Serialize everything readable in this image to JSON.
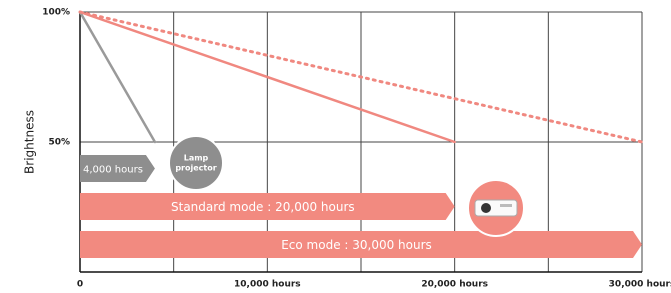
{
  "chart_data": {
    "type": "line",
    "y_label": "Brightness",
    "xlim": [
      0,
      30000
    ],
    "ylim": [
      0,
      100
    ],
    "xticks": [
      0,
      {
        "value": 5000,
        "label": null
      },
      {
        "value": 10000,
        "label": "10,000 hours"
      },
      {
        "value": 15000,
        "label": null
      },
      {
        "value": 20000,
        "label": "20,000 hours"
      },
      {
        "value": 25000,
        "label": null
      },
      {
        "value": 30000,
        "label": "30,000 hours"
      }
    ],
    "yticks": [
      {
        "value": 50,
        "label": "50%"
      },
      {
        "value": 100,
        "label": "100%"
      }
    ],
    "grid": true,
    "series": [
      {
        "color": "#9a9a9a",
        "dashed": false,
        "x": [
          0,
          4000
        ],
        "values": [
          100,
          50
        ]
      },
      {
        "color": "#f08880",
        "dashed": false,
        "x": [
          0,
          20000
        ],
        "values": [
          100,
          50
        ]
      },
      {
        "color": "#f08880",
        "dashed": true,
        "x": [
          0,
          30000
        ],
        "values": [
          100,
          50
        ]
      }
    ],
    "arrows": [
      {
        "label": "4,000 hours",
        "end": 4000,
        "color": "#8e8e8e"
      },
      {
        "label": "Standard mode : 20,000 hours",
        "end": 20000,
        "color": "#f28a80"
      },
      {
        "label": "Eco mode : 30,000 hours",
        "end": 30000,
        "color": "#f28a80"
      }
    ],
    "badge": {
      "lines": [
        "Lamp",
        "projector"
      ],
      "color": "#8e8e8e"
    }
  }
}
